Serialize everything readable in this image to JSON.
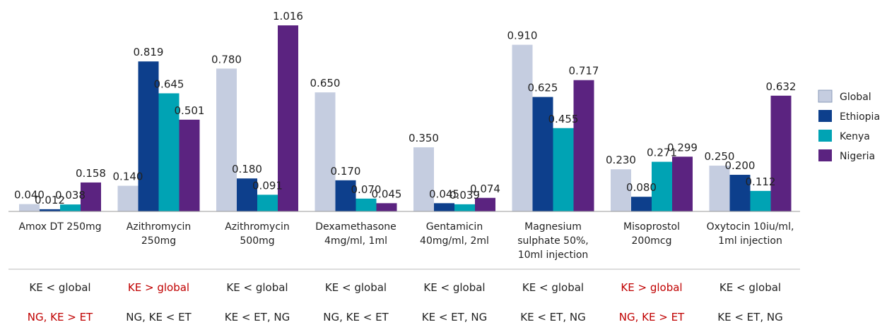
{
  "chart_data": {
    "type": "bar",
    "categories": [
      [
        "Amox DT 250mg"
      ],
      [
        "Azithromycin",
        "250mg"
      ],
      [
        "Azithromycin",
        "500mg"
      ],
      [
        "Dexamethasone",
        "4mg/ml, 1ml"
      ],
      [
        "Gentamicin",
        "40mg/ml, 2ml"
      ],
      [
        "Magnesium",
        "sulphate 50%,",
        "10ml injection"
      ],
      [
        "Misoprostol",
        "200mcg"
      ],
      [
        "Oxytocin 10iu/ml,",
        "1ml injection"
      ]
    ],
    "series": [
      {
        "name": "Global",
        "color": "#c5cde0",
        "values": [
          0.04,
          0.14,
          0.78,
          0.65,
          0.35,
          0.91,
          0.23,
          0.25
        ]
      },
      {
        "name": "Ethiopia",
        "color": "#0d3f8c",
        "values": [
          0.012,
          0.819,
          0.18,
          0.17,
          0.045,
          0.625,
          0.08,
          0.2
        ]
      },
      {
        "name": "Kenya",
        "color": "#00a3b4",
        "values": [
          0.038,
          0.645,
          0.091,
          0.07,
          0.039,
          0.455,
          0.271,
          0.112
        ]
      },
      {
        "name": "Nigeria",
        "color": "#5b2380",
        "values": [
          0.158,
          0.501,
          1.016,
          0.045,
          0.074,
          0.717,
          0.299,
          0.632
        ]
      }
    ],
    "labels": [
      [
        "0.040",
        "0.012",
        "0.038",
        "0.158"
      ],
      [
        "0.140",
        "0.819",
        "0.645",
        "0.501"
      ],
      [
        "0.780",
        "0.180",
        "0.091",
        "1.016"
      ],
      [
        "0.650",
        "0.170",
        "0.070",
        "0.045"
      ],
      [
        "0.350",
        "0.045",
        "0.039",
        "0.074"
      ],
      [
        "0.910",
        "0.625",
        "0.455",
        "0.717"
      ],
      [
        "0.230",
        "0.080",
        "0.271",
        "0.299"
      ],
      [
        "0.250",
        "0.200",
        "0.112",
        "0.632"
      ]
    ],
    "ylim": [
      0,
      1.05
    ],
    "grid": false,
    "legend_position": "right",
    "comparison_rows": [
      [
        {
          "text": "KE < global",
          "highlight": false
        },
        {
          "text": "KE > global",
          "highlight": true
        },
        {
          "text": "KE < global",
          "highlight": false
        },
        {
          "text": "KE < global",
          "highlight": false
        },
        {
          "text": "KE < global",
          "highlight": false
        },
        {
          "text": "KE < global",
          "highlight": false
        },
        {
          "text": "KE > global",
          "highlight": true
        },
        {
          "text": "KE < global",
          "highlight": false
        }
      ],
      [
        {
          "text": "NG, KE > ET",
          "highlight": true
        },
        {
          "text": "NG, KE < ET",
          "highlight": false
        },
        {
          "text": "KE < ET, NG",
          "highlight": false
        },
        {
          "text": "NG, KE < ET",
          "highlight": false
        },
        {
          "text": "KE < ET, NG",
          "highlight": false
        },
        {
          "text": "KE < ET, NG",
          "highlight": false
        },
        {
          "text": "NG, KE > ET",
          "highlight": true
        },
        {
          "text": "KE < ET, NG",
          "highlight": false
        }
      ]
    ],
    "highlight_color": "#c00000"
  }
}
